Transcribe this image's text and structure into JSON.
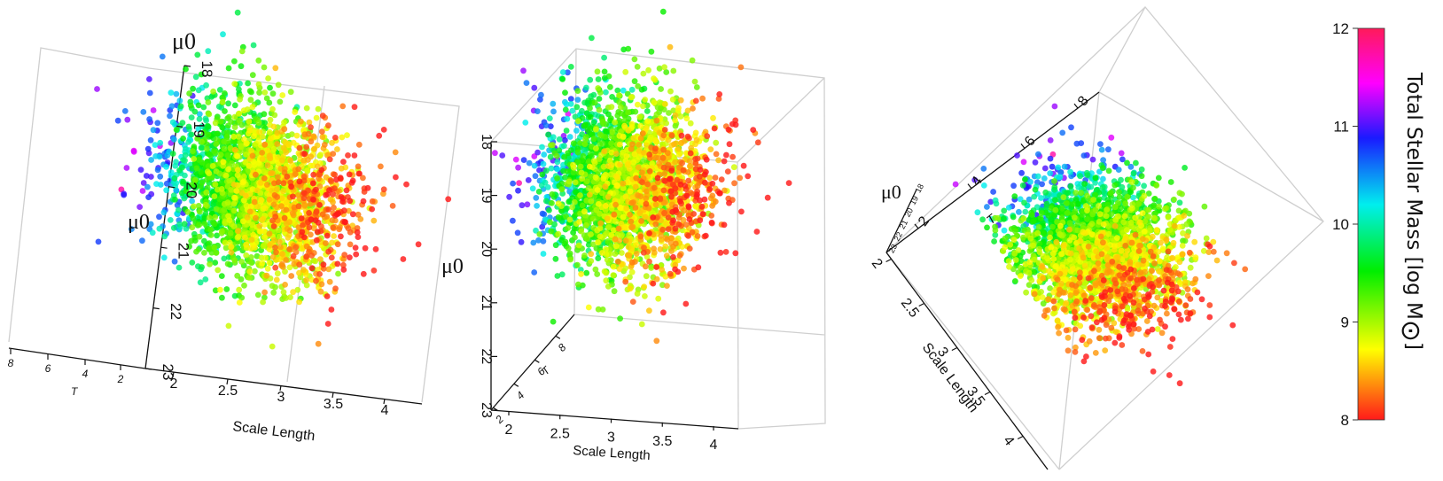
{
  "chart_data": [
    {
      "type": "scatter",
      "view": "left",
      "xlabel": "Scale Length",
      "ylabel": "μ0",
      "zlabel": "T",
      "x_ticks": [
        "2",
        "2.5",
        "3",
        "3.5",
        "4"
      ],
      "y_ticks": [
        "18",
        "19",
        "20",
        "21",
        "22",
        "23"
      ],
      "z_ticks": [
        "8",
        "6",
        "4",
        "2"
      ],
      "xlim": [
        1.8,
        4.1
      ],
      "ylim": [
        18,
        23
      ],
      "zlim": [
        0,
        9
      ]
    },
    {
      "type": "scatter",
      "view": "middle",
      "xlabel": "Scale Length",
      "ylabel": "μ0",
      "zlabel": "T",
      "x_ticks": [
        "2",
        "2.5",
        "3",
        "3.5",
        "4"
      ],
      "y_ticks": [
        "18",
        "19",
        "20",
        "21",
        "22",
        "23"
      ],
      "z_ticks": [
        "2",
        "4",
        "6",
        "8"
      ],
      "xlim": [
        1.8,
        4.1
      ],
      "ylim": [
        18,
        23
      ],
      "zlim": [
        0,
        9
      ]
    },
    {
      "type": "scatter",
      "view": "right",
      "xlabel": "Scale Length",
      "ylabel": "μ0",
      "zlabel": "T",
      "x_ticks": [
        "2",
        "2.5",
        "3",
        "3.5",
        "4"
      ],
      "y_ticks": [
        "18",
        "19",
        "20",
        "21",
        "22",
        "23"
      ],
      "z_ticks": [
        "2",
        "4",
        "6",
        "8"
      ],
      "xlim": [
        1.8,
        4.1
      ],
      "ylim": [
        18,
        23
      ],
      "zlim": [
        0,
        9
      ]
    }
  ],
  "colorbar": {
    "label_main": "Total Stellar Mass [log M",
    "label_sub": "⊙",
    "label_end": "]",
    "ticks": [
      "12",
      "11",
      "10",
      "9",
      "8"
    ],
    "range": [
      8,
      12
    ],
    "colormap": "red-yellow-green-cyan-blue-magenta-red",
    "colors": [
      "#ff1a1a",
      "#ffff00",
      "#00ee00",
      "#00eeee",
      "#1a1aff",
      "#ff00ff",
      "#ff1a5a"
    ]
  },
  "trend": "Higher total stellar mass at larger scale length and fainter central surface brightness μ0"
}
